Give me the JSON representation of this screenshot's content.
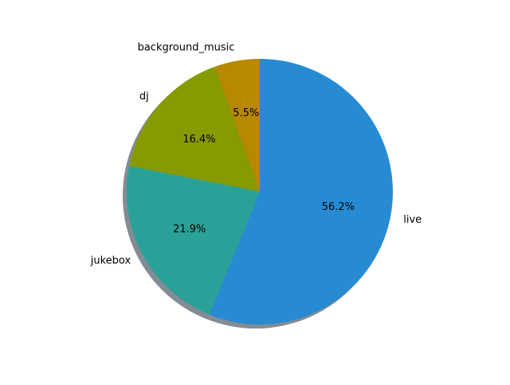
{
  "chart_data": {
    "type": "pie",
    "title": "",
    "start_angle_deg": 90,
    "direction": "counterclockwise",
    "shadow": true,
    "slices": [
      {
        "label": "background_music",
        "value": 5.5,
        "pct_label": "5.5%",
        "color": "#b78800"
      },
      {
        "label": "dj",
        "value": 16.4,
        "pct_label": "16.4%",
        "color": "#879a00"
      },
      {
        "label": "jukebox",
        "value": 21.9,
        "pct_label": "21.9%",
        "color": "#2aa198"
      },
      {
        "label": "live",
        "value": 56.2,
        "pct_label": "56.2%",
        "color": "#268bd2"
      }
    ]
  }
}
